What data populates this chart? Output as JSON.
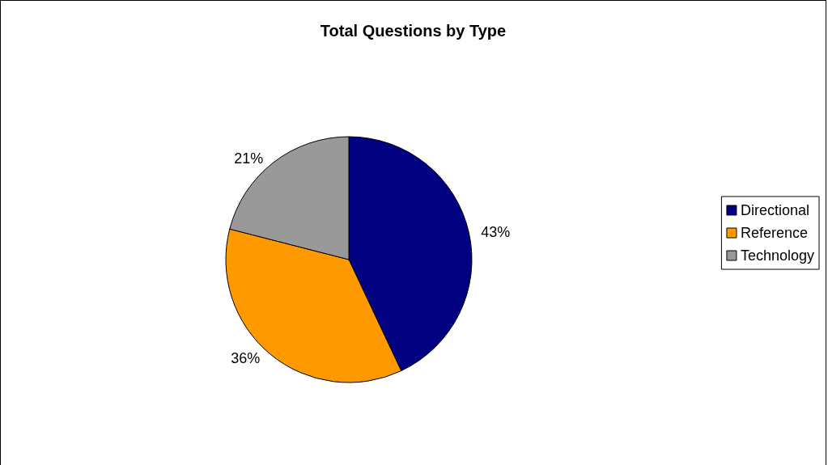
{
  "chart_data": {
    "type": "pie",
    "title": "Total Questions by Type",
    "categories": [
      "Directional",
      "Reference",
      "Technology"
    ],
    "values": [
      43,
      36,
      21
    ],
    "value_labels": [
      "43%",
      "36%",
      "21%"
    ],
    "colors": [
      "#000080",
      "#ff9900",
      "#999999"
    ],
    "legend": "right"
  }
}
